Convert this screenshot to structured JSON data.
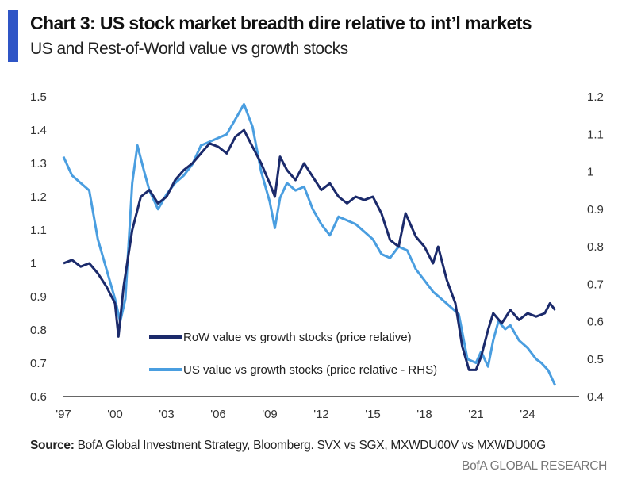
{
  "header": {
    "title": "Chart 3: US stock market breadth dire relative to int’l markets",
    "subtitle": "US and Rest-of-World value vs growth stocks"
  },
  "footer": {
    "source_label": "Source:",
    "source_text": " BofA Global Investment Strategy, Bloomberg. SVX vs SGX, MXWDU00V vs MXWDU00G",
    "brand": "BofA GLOBAL RESEARCH"
  },
  "chart_data": {
    "type": "line",
    "title": "Chart 3: US stock market breadth dire relative to int’l markets",
    "subtitle": "US and Rest-of-World value vs growth stocks",
    "x_ticks": [
      "'97",
      "'00",
      "'03",
      "'06",
      "'09",
      "'12",
      "'15",
      "'18",
      "'21",
      "'24"
    ],
    "x_tick_years": [
      1997,
      2000,
      2003,
      2006,
      2009,
      2012,
      2015,
      2018,
      2021,
      2024
    ],
    "xlim": [
      1997,
      2027
    ],
    "y_left": {
      "ylim": [
        0.6,
        1.5
      ],
      "ticks": [
        "0.6",
        "0.7",
        "0.8",
        "0.9",
        "1",
        "1.1",
        "1.2",
        "1.3",
        "1.4",
        "1.5"
      ]
    },
    "y_right": {
      "ylim": [
        0.4,
        1.2
      ],
      "ticks": [
        "0.4",
        "0.5",
        "0.6",
        "0.7",
        "0.8",
        "0.9",
        "1",
        "1.1",
        "1.2"
      ]
    },
    "legend_position": "bottom-left",
    "colors": {
      "row": "#1b2a6b",
      "us": "#4a9ee0"
    },
    "series": [
      {
        "name": "RoW value vs growth stocks (price relative)",
        "axis": "left",
        "x": [
          1997,
          1997.5,
          1998,
          1998.5,
          1999,
          1999.5,
          2000,
          2000.2,
          2000.5,
          2001,
          2001.5,
          2002,
          2002.5,
          2003,
          2003.5,
          2004,
          2004.5,
          2005,
          2005.5,
          2006,
          2006.5,
          2007,
          2007.5,
          2008,
          2008.5,
          2009,
          2009.3,
          2009.6,
          2010,
          2010.5,
          2011,
          2011.5,
          2012,
          2012.5,
          2013,
          2013.5,
          2014,
          2014.5,
          2015,
          2015.5,
          2016,
          2016.5,
          2016.9,
          2017.5,
          2018,
          2018.5,
          2018.8,
          2019.3,
          2019.8,
          2020.2,
          2020.6,
          2021,
          2021.3,
          2021.7,
          2022,
          2022.5,
          2023,
          2023.5,
          2024,
          2024.5,
          2025,
          2025.3,
          2025.6
        ],
        "values": [
          1.0,
          1.01,
          0.99,
          1.0,
          0.97,
          0.93,
          0.88,
          0.78,
          0.93,
          1.1,
          1.2,
          1.22,
          1.18,
          1.2,
          1.25,
          1.28,
          1.3,
          1.33,
          1.36,
          1.35,
          1.33,
          1.38,
          1.4,
          1.35,
          1.3,
          1.24,
          1.2,
          1.32,
          1.28,
          1.25,
          1.3,
          1.26,
          1.22,
          1.24,
          1.2,
          1.18,
          1.2,
          1.19,
          1.2,
          1.15,
          1.07,
          1.05,
          1.15,
          1.08,
          1.05,
          1.0,
          1.05,
          0.95,
          0.88,
          0.75,
          0.68,
          0.68,
          0.72,
          0.8,
          0.85,
          0.82,
          0.86,
          0.83,
          0.85,
          0.84,
          0.85,
          0.88,
          0.86
        ]
      },
      {
        "name": "US value vs growth stocks (price relative - RHS)",
        "axis": "right",
        "x": [
          1997,
          1997.5,
          1998,
          1998.5,
          1999,
          1999.5,
          2000,
          2000.3,
          2000.6,
          2001,
          2001.3,
          2001.7,
          2002,
          2002.5,
          2003,
          2003.5,
          2004,
          2004.5,
          2005,
          2005.5,
          2006,
          2006.5,
          2007,
          2007.5,
          2008,
          2008.5,
          2009,
          2009.3,
          2009.6,
          2010,
          2010.5,
          2011,
          2011.5,
          2012,
          2012.5,
          2013,
          2013.5,
          2014,
          2014.5,
          2015,
          2015.5,
          2016,
          2016.5,
          2017,
          2017.5,
          2018,
          2018.5,
          2019,
          2019.5,
          2020,
          2020.5,
          2021,
          2021.3,
          2021.7,
          2022,
          2022.3,
          2022.7,
          2023,
          2023.5,
          2024,
          2024.5,
          2024.8,
          2025.2,
          2025.6
        ],
        "values": [
          1.04,
          0.99,
          0.97,
          0.95,
          0.82,
          0.74,
          0.66,
          0.6,
          0.66,
          0.97,
          1.07,
          1.0,
          0.95,
          0.9,
          0.94,
          0.97,
          0.99,
          1.02,
          1.07,
          1.08,
          1.09,
          1.1,
          1.14,
          1.18,
          1.12,
          1.0,
          0.92,
          0.85,
          0.93,
          0.97,
          0.95,
          0.96,
          0.9,
          0.86,
          0.83,
          0.88,
          0.87,
          0.86,
          0.84,
          0.82,
          0.78,
          0.77,
          0.8,
          0.79,
          0.74,
          0.71,
          0.68,
          0.66,
          0.64,
          0.62,
          0.5,
          0.49,
          0.52,
          0.48,
          0.55,
          0.6,
          0.58,
          0.59,
          0.55,
          0.53,
          0.5,
          0.49,
          0.47,
          0.43
        ]
      }
    ]
  }
}
